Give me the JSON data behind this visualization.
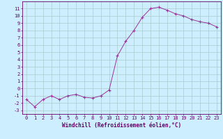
{
  "x": [
    0,
    1,
    2,
    3,
    4,
    5,
    6,
    7,
    8,
    9,
    10,
    11,
    12,
    13,
    14,
    15,
    16,
    17,
    18,
    19,
    20,
    21,
    22,
    23
  ],
  "y": [
    -1.5,
    -2.5,
    -1.5,
    -1.0,
    -1.5,
    -1.0,
    -0.8,
    -1.2,
    -1.3,
    -1.0,
    -0.2,
    4.5,
    6.5,
    8.0,
    9.8,
    11.0,
    11.2,
    10.8,
    10.3,
    10.0,
    9.5,
    9.2,
    9.0,
    8.5
  ],
  "line_color": "#993399",
  "marker": "+",
  "marker_size": 3,
  "bg_color": "#cceeff",
  "grid_color": "#aacccc",
  "xlabel": "Windchill (Refroidissement éolien,°C)",
  "xlabel_fontsize": 5.5,
  "ylabel_ticks": [
    -3,
    -2,
    -1,
    0,
    1,
    2,
    3,
    4,
    5,
    6,
    7,
    8,
    9,
    10,
    11
  ],
  "xlim": [
    -0.5,
    23.5
  ],
  "ylim": [
    -3.5,
    12.0
  ],
  "tick_fontsize": 5,
  "axis_color": "#660066",
  "spine_color": "#660066"
}
